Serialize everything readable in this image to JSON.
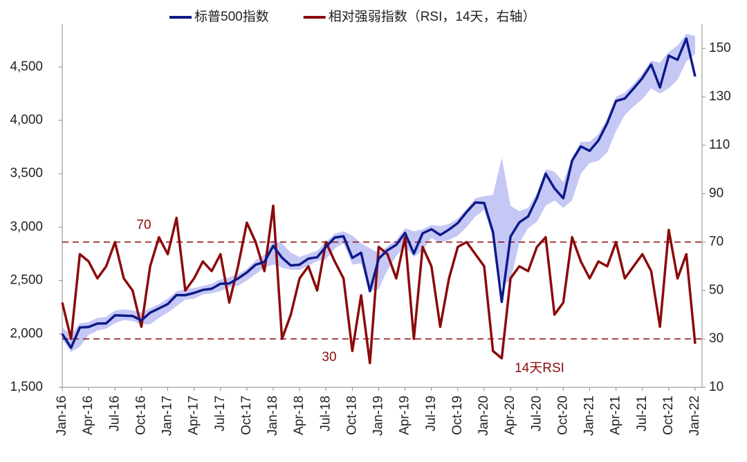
{
  "chart_data": {
    "type": "line",
    "categories": [
      "Jan-16",
      null,
      null,
      "Apr-16",
      null,
      null,
      "Jul-16",
      null,
      null,
      "Oct-16",
      null,
      null,
      "Jan-17",
      null,
      null,
      "Apr-17",
      null,
      null,
      "Jul-17",
      null,
      null,
      "Oct-17",
      null,
      null,
      "Jan-18",
      null,
      null,
      "Apr-18",
      null,
      null,
      "Jul-18",
      null,
      null,
      "Oct-18",
      null,
      null,
      "Jan-19",
      null,
      null,
      "Apr-19",
      null,
      null,
      "Jul-19",
      null,
      null,
      "Oct-19",
      null,
      null,
      "Jan-20",
      null,
      null,
      "Apr-20",
      null,
      null,
      "Jul-20",
      null,
      null,
      "Oct-20",
      null,
      null,
      "Jan-21",
      null,
      null,
      "Apr-21",
      null,
      null,
      "Jul-21",
      null,
      null,
      "Oct-21",
      null,
      null,
      "Jan-22"
    ],
    "series": [
      {
        "name": "标普500指数",
        "color": "#0d1a8a",
        "axis": "y",
        "values": [
          2000,
          1870,
          2060,
          2065,
          2097,
          2099,
          2174,
          2171,
          2168,
          2126,
          2199,
          2239,
          2279,
          2364,
          2363,
          2384,
          2412,
          2423,
          2470,
          2472,
          2519,
          2575,
          2648,
          2674,
          2824,
          2714,
          2641,
          2648,
          2705,
          2718,
          2816,
          2902,
          2914,
          2712,
          2760,
          2400,
          2704,
          2784,
          2834,
          2946,
          2752,
          2942,
          2980,
          2926,
          2977,
          3038,
          3141,
          3231,
          3226,
          2954,
          2300,
          2912,
          3044,
          3100,
          3271,
          3500,
          3363,
          3270,
          3622,
          3756,
          3714,
          3811,
          3973,
          4181,
          4204,
          4298,
          4395,
          4523,
          4308,
          4605,
          4567,
          4766,
          4410
        ]
      },
      {
        "name": "相对强弱指数（RSI，14天，右轴）",
        "color": "#8b0a0a",
        "axis": "y2",
        "values": [
          45,
          30,
          65,
          62,
          55,
          60,
          70,
          55,
          50,
          35,
          60,
          72,
          65,
          80,
          50,
          55,
          62,
          58,
          65,
          45,
          60,
          78,
          70,
          58,
          85,
          30,
          40,
          55,
          60,
          50,
          70,
          62,
          55,
          25,
          48,
          20,
          68,
          65,
          55,
          72,
          30,
          68,
          60,
          35,
          55,
          68,
          70,
          65,
          60,
          25,
          22,
          55,
          60,
          58,
          68,
          72,
          40,
          45,
          72,
          62,
          55,
          62,
          60,
          70,
          55,
          60,
          65,
          58,
          35,
          75,
          55,
          65,
          28
        ]
      }
    ],
    "band": {
      "color": "#c5c8f5",
      "upper": [
        2060,
        1990,
        2100,
        2110,
        2150,
        2160,
        2220,
        2230,
        2220,
        2200,
        2240,
        2280,
        2330,
        2400,
        2420,
        2430,
        2450,
        2470,
        2510,
        2530,
        2560,
        2610,
        2690,
        2740,
        2880,
        2850,
        2760,
        2720,
        2750,
        2780,
        2860,
        2940,
        2960,
        2920,
        2850,
        2800,
        2760,
        2820,
        2880,
        2990,
        2960,
        2980,
        3020,
        3010,
        3030,
        3080,
        3170,
        3270,
        3290,
        3300,
        3650,
        3200,
        3150,
        3180,
        3320,
        3540,
        3520,
        3420,
        3650,
        3800,
        3800,
        3870,
        4020,
        4220,
        4260,
        4340,
        4440,
        4560,
        4540,
        4640,
        4700,
        4810,
        4790
      ],
      "lower": [
        1950,
        1830,
        1880,
        1990,
        2030,
        2050,
        2100,
        2130,
        2120,
        2090,
        2090,
        2150,
        2200,
        2260,
        2320,
        2330,
        2370,
        2380,
        2400,
        2440,
        2450,
        2500,
        2560,
        2620,
        2650,
        2620,
        2600,
        2600,
        2640,
        2680,
        2700,
        2800,
        2850,
        2650,
        2660,
        2400,
        2420,
        2600,
        2730,
        2820,
        2720,
        2780,
        2900,
        2850,
        2880,
        2920,
        3000,
        3100,
        3160,
        2900,
        2450,
        2500,
        2850,
        2990,
        3050,
        3200,
        3250,
        3180,
        3250,
        3500,
        3600,
        3620,
        3700,
        3900,
        4050,
        4130,
        4200,
        4300,
        4250,
        4300,
        4380,
        4550,
        4620
      ]
    },
    "ylim": [
      1500,
      4900
    ],
    "yticks": [
      {
        "value": 1500,
        "label": "1,500"
      },
      {
        "value": 2000,
        "label": "2,000"
      },
      {
        "value": 2500,
        "label": "2,500"
      },
      {
        "value": 3000,
        "label": "3,000"
      },
      {
        "value": 3500,
        "label": "3,500"
      },
      {
        "value": 4000,
        "label": "4,000"
      },
      {
        "value": 4500,
        "label": "4,500"
      }
    ],
    "y2lim": [
      10,
      160
    ],
    "y2ticks": [
      10,
      30,
      50,
      70,
      90,
      110,
      130,
      150
    ],
    "reference_lines": [
      {
        "axis": "y2",
        "value": 70,
        "color": "#8b0a0a"
      },
      {
        "axis": "y2",
        "value": 30,
        "color": "#8b0a0a"
      }
    ],
    "annotations": [
      "70",
      "30",
      "14天RSI"
    ],
    "legend": "top"
  }
}
